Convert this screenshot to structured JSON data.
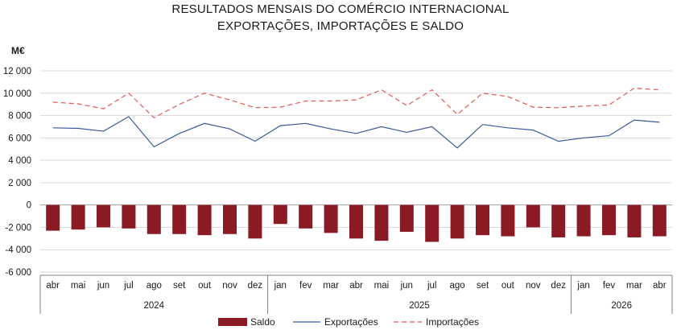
{
  "chart_data": {
    "type": "bar+line",
    "title": "RESULTADOS MENSAIS DO COMÉRCIO INTERNACIONAL",
    "subtitle": "EXPORTAÇÕES, IMPORTAÇÕES E SALDO",
    "ylabel": "M€",
    "ylim": [
      -6000,
      12000
    ],
    "yticks": [
      12000,
      10000,
      8000,
      6000,
      4000,
      2000,
      0,
      -2000,
      -4000,
      -6000
    ],
    "ytick_labels": [
      "12 000",
      "10 000",
      "8 000",
      "6 000",
      "4 000",
      "2 000",
      "0",
      "-2 000",
      "-4 000",
      "-6 000"
    ],
    "grid": true,
    "categories": [
      "abr",
      "mai",
      "jun",
      "jul",
      "ago",
      "set",
      "out",
      "nov",
      "dez",
      "jan",
      "fev",
      "mar",
      "abr",
      "mai",
      "jun",
      "jul",
      "ago",
      "set",
      "out",
      "nov",
      "dez",
      "jan",
      "fev",
      "mar",
      "abr"
    ],
    "year_groups": [
      {
        "label": "2024",
        "count": 9
      },
      {
        "label": "2025",
        "count": 12
      },
      {
        "label": "2026",
        "count": 4
      }
    ],
    "series": [
      {
        "name": "Saldo",
        "type": "bar",
        "color": "#8b1a24",
        "values": [
          -2300,
          -2200,
          -2000,
          -2100,
          -2600,
          -2600,
          -2700,
          -2600,
          -3000,
          -1700,
          -2100,
          -2500,
          -3000,
          -3200,
          -2400,
          -3300,
          -3000,
          -2700,
          -2800,
          -2000,
          -2900,
          -2800,
          -2700,
          -2900,
          -2800
        ]
      },
      {
        "name": "Exportações",
        "type": "line",
        "color": "#3b5998",
        "values": [
          6900,
          6850,
          6600,
          7900,
          5200,
          6400,
          7300,
          6800,
          5700,
          7100,
          7300,
          6800,
          6400,
          7000,
          6500,
          7000,
          5100,
          7200,
          6900,
          6700,
          5700,
          6000,
          6200,
          7600,
          7400
        ]
      },
      {
        "name": "Importações",
        "type": "line",
        "dash": true,
        "color": "#e05a5a",
        "values": [
          9200,
          9050,
          8600,
          10000,
          7800,
          9000,
          10000,
          9400,
          8700,
          8750,
          9300,
          9300,
          9400,
          10300,
          8900,
          10300,
          8100,
          10000,
          9700,
          8750,
          8700,
          8850,
          8950,
          10450,
          10300
        ]
      }
    ],
    "legend_position": "bottom"
  }
}
